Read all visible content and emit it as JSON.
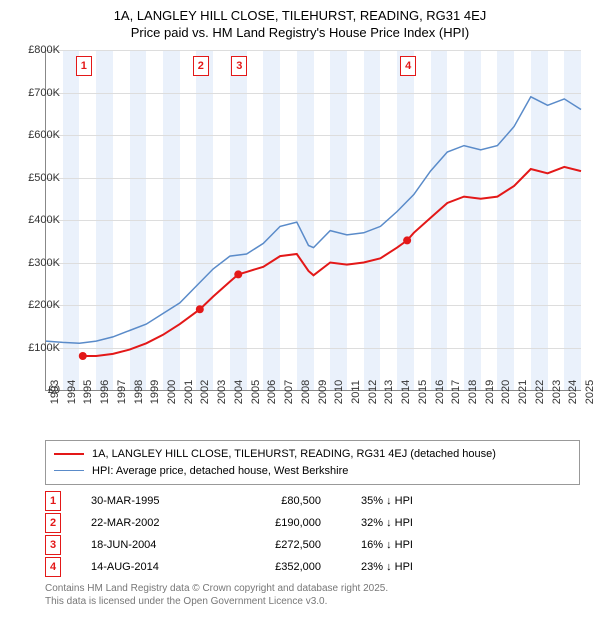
{
  "title_line1": "1A, LANGLEY HILL CLOSE, TILEHURST, READING, RG31 4EJ",
  "title_line2": "Price paid vs. HM Land Registry's House Price Index (HPI)",
  "chart": {
    "type": "line",
    "background_color": "#ffffff",
    "band_color": "#eaf1fb",
    "ylim": [
      0,
      800000
    ],
    "ytick_step": 100000,
    "y_ticks": [
      "£0",
      "£100K",
      "£200K",
      "£300K",
      "£400K",
      "£500K",
      "£600K",
      "£700K",
      "£800K"
    ],
    "x_years": [
      1993,
      1994,
      1995,
      1996,
      1997,
      1998,
      1999,
      2000,
      2001,
      2002,
      2003,
      2004,
      2005,
      2006,
      2007,
      2008,
      2009,
      2010,
      2011,
      2012,
      2013,
      2014,
      2015,
      2016,
      2017,
      2018,
      2019,
      2020,
      2021,
      2022,
      2023,
      2024,
      2025
    ],
    "series": [
      {
        "name": "property",
        "color": "#e31818",
        "width": 2,
        "data": [
          [
            1995.2,
            80
          ],
          [
            1996,
            80
          ],
          [
            1997,
            85
          ],
          [
            1998,
            95
          ],
          [
            1999,
            110
          ],
          [
            2000,
            130
          ],
          [
            2001,
            155
          ],
          [
            2002.2,
            190
          ],
          [
            2003,
            220
          ],
          [
            2004,
            255
          ],
          [
            2004.5,
            272
          ],
          [
            2005,
            278
          ],
          [
            2006,
            290
          ],
          [
            2007,
            315
          ],
          [
            2008,
            320
          ],
          [
            2008.7,
            280
          ],
          [
            2009,
            270
          ],
          [
            2010,
            300
          ],
          [
            2011,
            295
          ],
          [
            2012,
            300
          ],
          [
            2013,
            310
          ],
          [
            2014,
            335
          ],
          [
            2014.6,
            352
          ],
          [
            2015,
            370
          ],
          [
            2016,
            405
          ],
          [
            2017,
            440
          ],
          [
            2018,
            455
          ],
          [
            2019,
            450
          ],
          [
            2020,
            455
          ],
          [
            2021,
            480
          ],
          [
            2022,
            520
          ],
          [
            2023,
            510
          ],
          [
            2024,
            525
          ],
          [
            2025,
            515
          ]
        ]
      },
      {
        "name": "hpi",
        "color": "#5a8bc9",
        "width": 1.5,
        "data": [
          [
            1993,
            115
          ],
          [
            1994,
            112
          ],
          [
            1995,
            110
          ],
          [
            1996,
            115
          ],
          [
            1997,
            125
          ],
          [
            1998,
            140
          ],
          [
            1999,
            155
          ],
          [
            2000,
            180
          ],
          [
            2001,
            205
          ],
          [
            2002,
            245
          ],
          [
            2003,
            285
          ],
          [
            2004,
            315
          ],
          [
            2005,
            320
          ],
          [
            2006,
            345
          ],
          [
            2007,
            385
          ],
          [
            2008,
            395
          ],
          [
            2008.7,
            340
          ],
          [
            2009,
            335
          ],
          [
            2010,
            375
          ],
          [
            2011,
            365
          ],
          [
            2012,
            370
          ],
          [
            2013,
            385
          ],
          [
            2014,
            420
          ],
          [
            2015,
            460
          ],
          [
            2016,
            515
          ],
          [
            2017,
            560
          ],
          [
            2018,
            575
          ],
          [
            2019,
            565
          ],
          [
            2020,
            575
          ],
          [
            2021,
            620
          ],
          [
            2022,
            690
          ],
          [
            2023,
            670
          ],
          [
            2024,
            685
          ],
          [
            2025,
            660
          ]
        ]
      }
    ],
    "markers": [
      {
        "n": "1",
        "x": 1995.2,
        "y": 80,
        "color": "#e31818"
      },
      {
        "n": "2",
        "x": 2002.2,
        "y": 190,
        "color": "#e31818"
      },
      {
        "n": "3",
        "x": 2004.5,
        "y": 272,
        "color": "#e31818"
      },
      {
        "n": "4",
        "x": 2014.6,
        "y": 352,
        "color": "#e31818"
      }
    ]
  },
  "legend": {
    "items": [
      {
        "color": "#e31818",
        "width": 2,
        "label": "1A, LANGLEY HILL CLOSE, TILEHURST, READING, RG31 4EJ (detached house)"
      },
      {
        "color": "#5a8bc9",
        "width": 1.5,
        "label": "HPI: Average price, detached house, West Berkshire"
      }
    ]
  },
  "sales": [
    {
      "n": "1",
      "date": "30-MAR-1995",
      "price": "£80,500",
      "hpi": "35% ↓ HPI"
    },
    {
      "n": "2",
      "date": "22-MAR-2002",
      "price": "£190,000",
      "hpi": "32% ↓ HPI"
    },
    {
      "n": "3",
      "date": "18-JUN-2004",
      "price": "£272,500",
      "hpi": "16% ↓ HPI"
    },
    {
      "n": "4",
      "date": "14-AUG-2014",
      "price": "£352,000",
      "hpi": "23% ↓ HPI"
    }
  ],
  "marker_color": "#e31818",
  "footer_line1": "Contains HM Land Registry data © Crown copyright and database right 2025.",
  "footer_line2": "This data is licensed under the Open Government Licence v3.0."
}
